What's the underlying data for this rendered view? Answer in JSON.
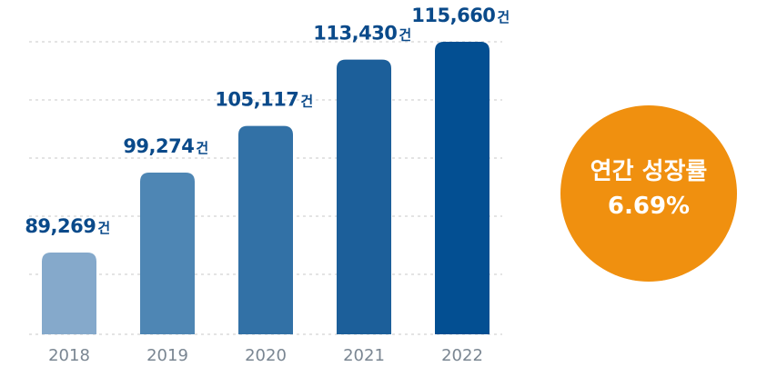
{
  "chart_data": {
    "type": "bar",
    "categories": [
      "2018",
      "2019",
      "2020",
      "2021",
      "2022"
    ],
    "values": [
      89269,
      99274,
      105117,
      113430,
      115660
    ],
    "data_labels": [
      "89,269",
      "99,274",
      "105,117",
      "113,430",
      "115,660"
    ],
    "unit": "건",
    "bar_colors": [
      "#85a9cb",
      "#4e86b4",
      "#3271a6",
      "#1c5f9a",
      "#034f92"
    ],
    "grid": true,
    "xlabel": "",
    "ylabel": ""
  },
  "badge": {
    "title": "연간 성장률",
    "value": "6.69%",
    "color": "#f0900f"
  }
}
